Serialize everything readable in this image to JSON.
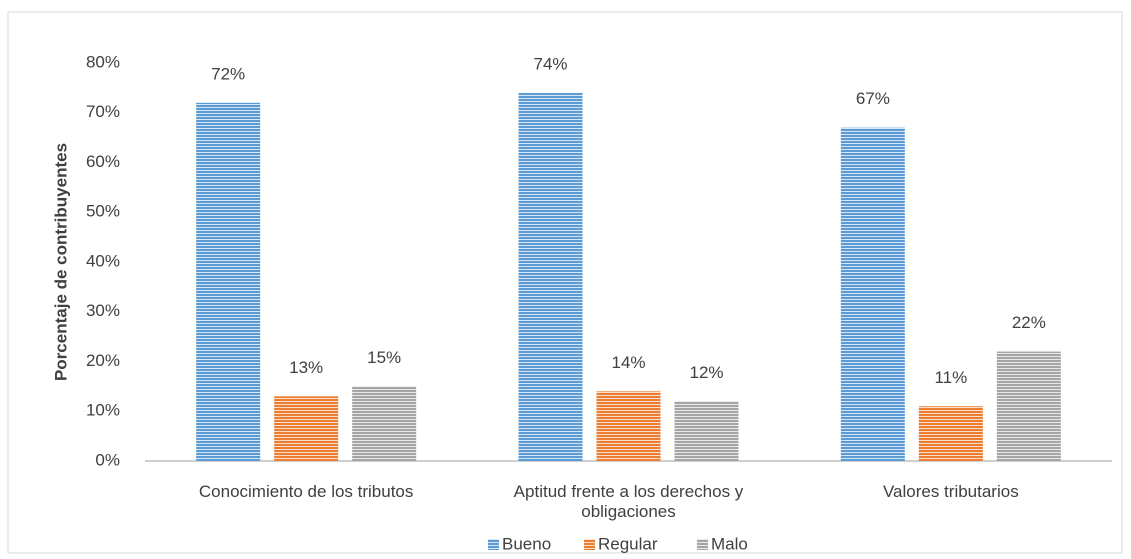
{
  "chart_data": {
    "type": "bar",
    "y_label": "Porcentaje de contribuyentes",
    "categories": [
      "Conocimiento de los tributos",
      "Aptitud frente a los derechos y obligaciones",
      "Valores tributarios"
    ],
    "series": [
      {
        "name": "Bueno",
        "color": "#5b9bd5",
        "values": [
          72,
          74,
          67
        ],
        "value_labels": [
          "72%",
          "74%",
          "67%"
        ]
      },
      {
        "name": "Regular",
        "color": "#ed7d31",
        "values": [
          13,
          14,
          11
        ],
        "value_labels": [
          "13%",
          "14%",
          "11%"
        ]
      },
      {
        "name": "Malo",
        "color": "#a5a5a5",
        "values": [
          15,
          12,
          22
        ],
        "value_labels": [
          "15%",
          "12%",
          "22%"
        ]
      }
    ],
    "ylim": [
      0,
      80
    ],
    "yticks": [
      {
        "value": 0,
        "label": "0%"
      },
      {
        "value": 10,
        "label": "10%"
      },
      {
        "value": 20,
        "label": "20%"
      },
      {
        "value": 30,
        "label": "30%"
      },
      {
        "value": 40,
        "label": "40%"
      },
      {
        "value": 50,
        "label": "50%"
      },
      {
        "value": 60,
        "label": "60%"
      },
      {
        "value": 70,
        "label": "70%"
      },
      {
        "value": 80,
        "label": "80%"
      }
    ],
    "grid": false,
    "legend": "bottom"
  }
}
